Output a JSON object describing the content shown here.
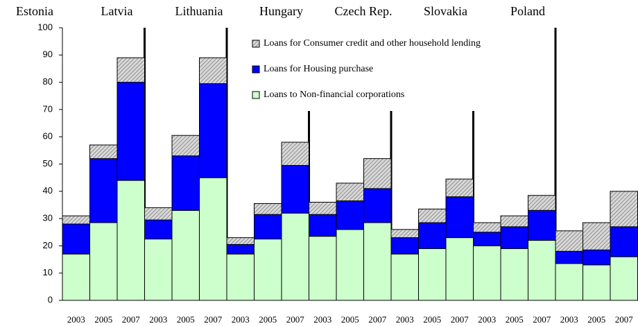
{
  "chart_data": {
    "type": "stacked_bar",
    "groups": [
      "Estonia",
      "Latvia",
      "Lithuania",
      "Hungary",
      "Czech Rep.",
      "Slovakia",
      "Poland"
    ],
    "categories": [
      "2003",
      "2005",
      "2007",
      "2003",
      "2005",
      "2007",
      "2003",
      "2005",
      "2007",
      "2003",
      "2005",
      "2007",
      "2003",
      "2005",
      "2007",
      "2003",
      "2005",
      "2007",
      "2003",
      "2005",
      "2007"
    ],
    "series": [
      {
        "name": "Loans to Non-financial corporations",
        "color": "#ccffcc",
        "values": [
          17,
          28.5,
          44,
          22.5,
          33,
          45,
          17,
          22.5,
          32,
          23.5,
          26,
          28.5,
          17,
          19,
          23,
          20,
          19,
          22,
          13.5,
          13,
          16
        ]
      },
      {
        "name": "Loans for Housing purchase",
        "color": "#0000ff",
        "values": [
          11,
          23.5,
          36,
          7,
          20,
          34.5,
          3.5,
          9,
          17.5,
          8,
          10.5,
          12.5,
          6,
          9.5,
          15,
          5,
          8,
          11,
          4.5,
          5.5,
          11
        ]
      },
      {
        "name": "Loans for Consumer credit  and other household lending",
        "color": "#c0c0c0",
        "values": [
          3,
          5,
          9,
          4.5,
          7.5,
          9.5,
          2.5,
          4,
          8.5,
          4.5,
          6.5,
          11,
          3,
          5,
          6.5,
          3.5,
          4,
          5.5,
          7.5,
          10,
          13
        ]
      }
    ],
    "ylim": [
      0,
      100
    ],
    "yticks": [
      0,
      10,
      20,
      30,
      40,
      50,
      60,
      70,
      80,
      90,
      100
    ]
  }
}
